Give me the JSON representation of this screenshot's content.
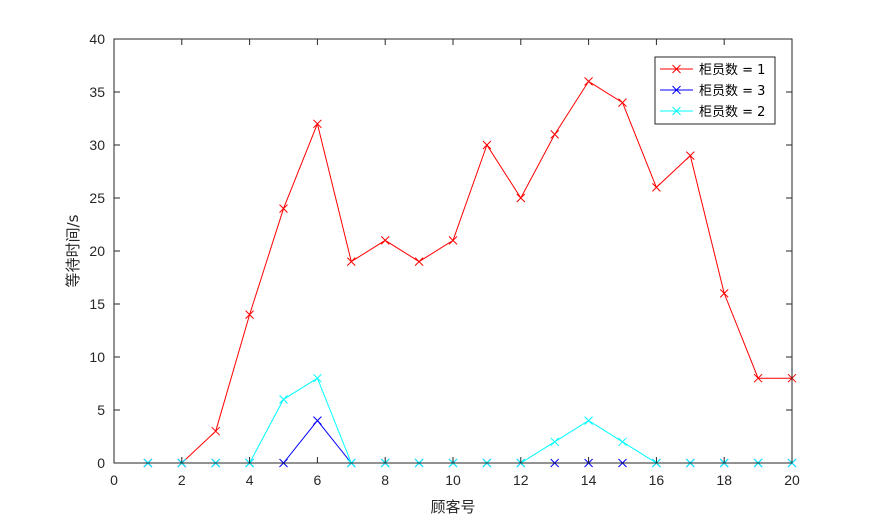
{
  "chart_data": {
    "type": "line",
    "title": "",
    "xlabel": "顾客号",
    "ylabel": "等待时间/s",
    "xlim": [
      0,
      20
    ],
    "ylim": [
      0,
      40
    ],
    "xticks": [
      0,
      2,
      4,
      6,
      8,
      10,
      12,
      14,
      16,
      18,
      20
    ],
    "yticks": [
      0,
      5,
      10,
      15,
      20,
      25,
      30,
      35,
      40
    ],
    "grid": false,
    "legend_position": "top-right",
    "marker": "x",
    "x": [
      1,
      2,
      3,
      4,
      5,
      6,
      7,
      8,
      9,
      10,
      11,
      12,
      13,
      14,
      15,
      16,
      17,
      18,
      19,
      20
    ],
    "series": [
      {
        "name": "柜员数 = 1",
        "color": "#ff0000",
        "values": [
          0,
          0,
          3,
          14,
          24,
          32,
          19,
          21,
          19,
          21,
          30,
          25,
          31,
          36,
          34,
          26,
          29,
          16,
          8,
          8
        ]
      },
      {
        "name": "柜员数 = 3",
        "color": "#0000ff",
        "values": [
          0,
          0,
          0,
          0,
          0,
          4,
          0,
          0,
          0,
          0,
          0,
          0,
          0,
          0,
          0,
          0,
          0,
          0,
          0,
          0
        ]
      },
      {
        "name": "柜员数 = 2",
        "color": "#00ffff",
        "values": [
          0,
          0,
          0,
          0,
          6,
          8,
          0,
          0,
          0,
          0,
          0,
          0,
          2,
          4,
          2,
          0,
          0,
          0,
          0,
          0
        ]
      }
    ]
  }
}
